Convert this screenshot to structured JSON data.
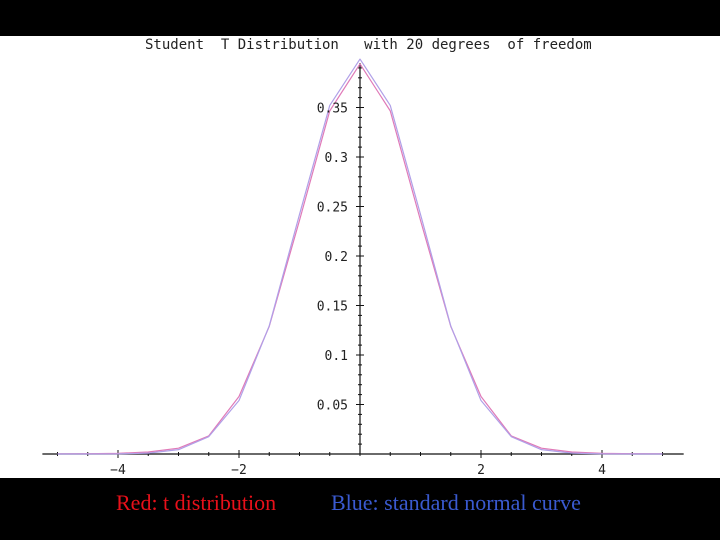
{
  "chart_data": {
    "type": "line",
    "title": "Student  T Distribution   with 20 degrees  of freedom",
    "xlim": [
      -5.25,
      5.35
    ],
    "ylim": [
      0,
      0.4
    ],
    "x_ticks": [
      {
        "value": -4,
        "label": "−4"
      },
      {
        "value": -2,
        "label": "−2"
      },
      {
        "value": 2,
        "label": "2"
      },
      {
        "value": 4,
        "label": "4"
      }
    ],
    "y_ticks": [
      {
        "value": 0.05,
        "label": "0.05"
      },
      {
        "value": 0.1,
        "label": "0.1"
      },
      {
        "value": 0.15,
        "label": "0.15"
      },
      {
        "value": 0.2,
        "label": "0.2"
      },
      {
        "value": 0.25,
        "label": "0.25"
      },
      {
        "value": 0.3,
        "label": "0.3"
      },
      {
        "value": 0.35,
        "label": "0.35"
      }
    ],
    "x": [
      -5.0,
      -4.5,
      -4.0,
      -3.5,
      -3.0,
      -2.5,
      -2.0,
      -1.5,
      -1.0,
      -0.5,
      0.0,
      0.5,
      1.0,
      1.5,
      2.0,
      2.5,
      3.0,
      3.5,
      4.0,
      4.5,
      5.0
    ],
    "series": [
      {
        "name": "t distribution",
        "color": "#e07ab8",
        "values": [
          0.0001,
          0.0003,
          0.0007,
          0.002,
          0.0059,
          0.0183,
          0.0581,
          0.1289,
          0.236,
          0.3466,
          0.394,
          0.3466,
          0.236,
          0.1289,
          0.0581,
          0.0183,
          0.0059,
          0.002,
          0.0007,
          0.0003,
          0.0001
        ]
      },
      {
        "name": "standard normal curve",
        "color": "#b0a0e8",
        "values": [
          0.0,
          0.0,
          0.0001,
          0.0009,
          0.0044,
          0.0175,
          0.054,
          0.1295,
          0.242,
          0.3521,
          0.3989,
          0.3521,
          0.242,
          0.1295,
          0.054,
          0.0175,
          0.0044,
          0.0009,
          0.0001,
          0.0,
          0.0
        ]
      }
    ],
    "grid": false,
    "legend": "bottom"
  },
  "legend": {
    "red_label": "Red: t distribution",
    "blue_label": "Blue: standard normal curve",
    "red_color": "#e8101a",
    "blue_color": "#3a5ad0"
  }
}
